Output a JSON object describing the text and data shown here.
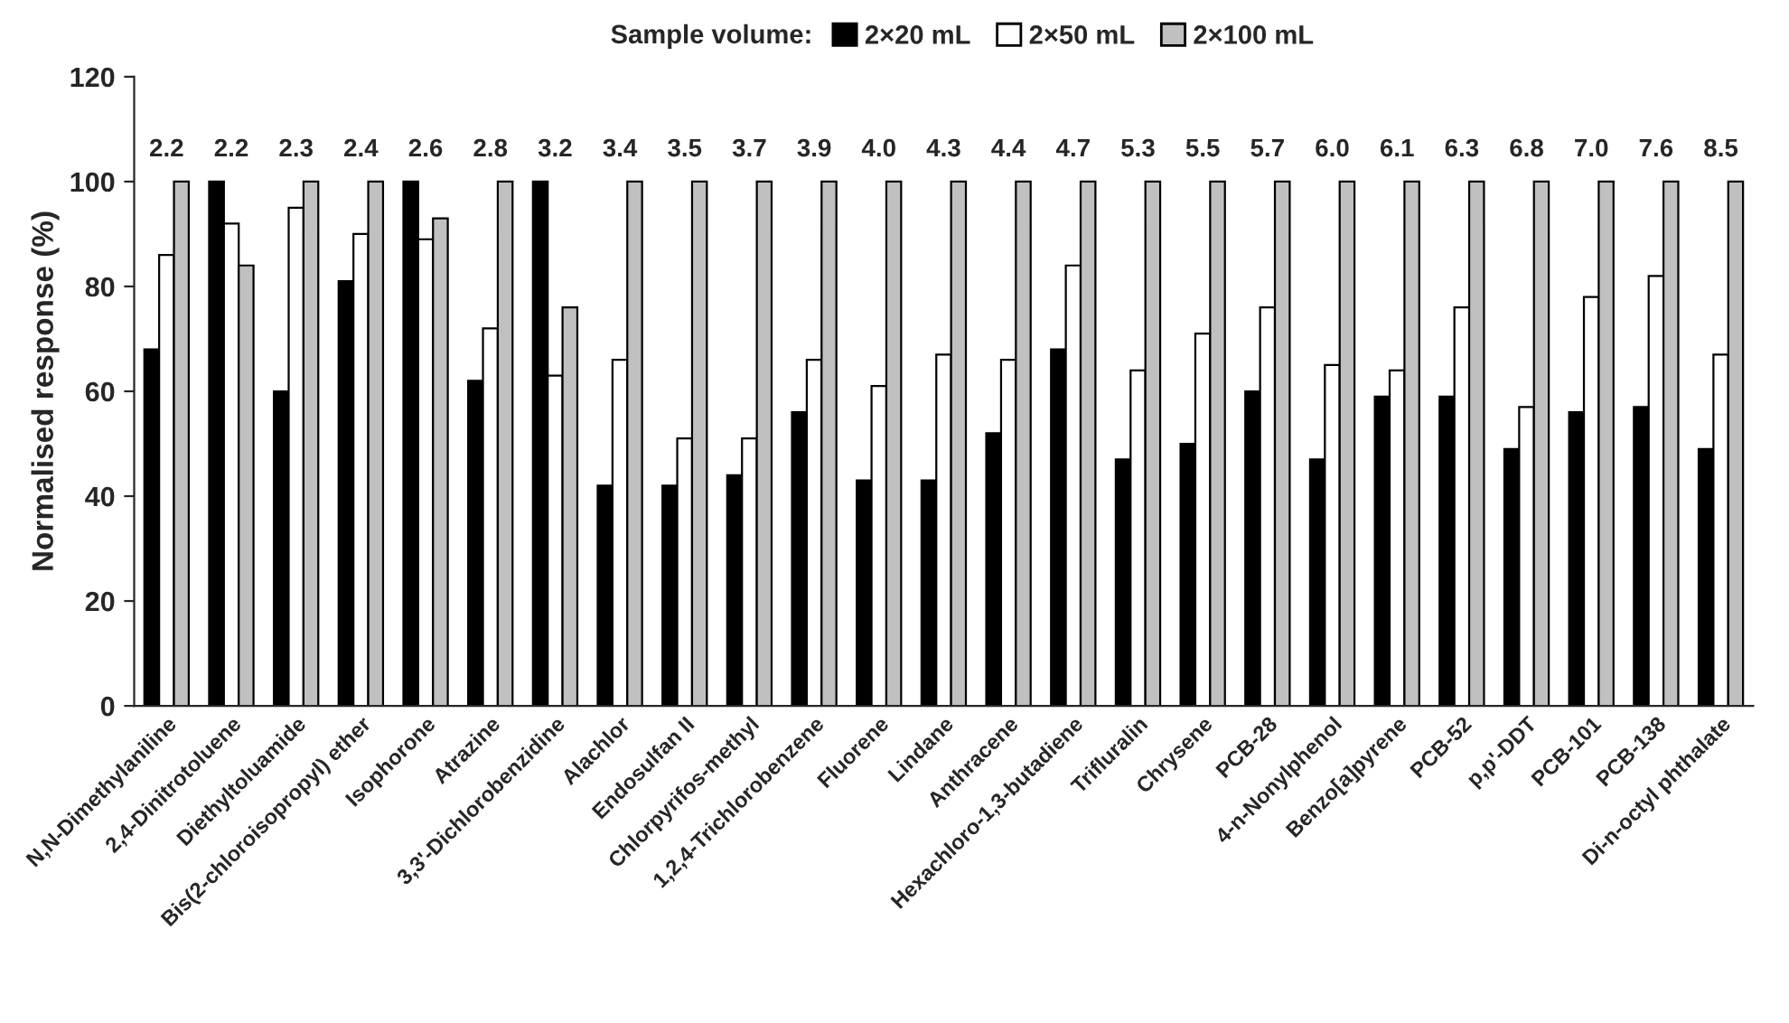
{
  "chart_data": {
    "type": "bar",
    "ylabel": "Normalised response (%)",
    "legend_title": "Sample volume:",
    "legend": "top",
    "categories": [
      "N,N-Dimethylaniline",
      "2,4-Dinitrotoluene",
      "Diethyltoluamide",
      "Bis(2-chloroisopropyl) ether",
      "Isophorone",
      "Atrazine",
      "3,3'-Dichlorobenzidine",
      "Alachlor",
      "Endosulfan II",
      "Chlorpyrifos-methyl",
      "1,2,4-Trichlorobenzene",
      "Fluorene",
      "Lindane",
      "Anthracene",
      "Hexachloro-1,3-butadiene",
      "Trifluralin",
      "Chrysene",
      "PCB-28",
      "4-n-Nonylphenol",
      "Benzo[a]pyrene",
      "PCB-52",
      "p,p'-DDT",
      "PCB-101",
      "PCB-138",
      "Di-n-octyl phthalate"
    ],
    "series": [
      {
        "name": "2×20 mL",
        "color": "#000000",
        "values": [
          68,
          100,
          60,
          81,
          100,
          62,
          100,
          42,
          42,
          44,
          56,
          43,
          43,
          52,
          68,
          47,
          50,
          60,
          47,
          59,
          59,
          49,
          56,
          57,
          49
        ]
      },
      {
        "name": "2×50 mL",
        "color": "#ffffff",
        "values": [
          86,
          92,
          95,
          90,
          89,
          72,
          63,
          66,
          51,
          51,
          66,
          61,
          67,
          66,
          84,
          64,
          71,
          76,
          65,
          64,
          76,
          57,
          78,
          82,
          67
        ]
      },
      {
        "name": "2×100 mL",
        "color": "#c0c0c0",
        "values": [
          100,
          84,
          100,
          100,
          93,
          100,
          76,
          100,
          100,
          100,
          100,
          100,
          100,
          100,
          100,
          100,
          100,
          100,
          100,
          100,
          100,
          100,
          100,
          100,
          100
        ]
      }
    ],
    "annotations": [
      "2.2",
      "2.2",
      "2.3",
      "2.4",
      "2.6",
      "2.8",
      "3.2",
      "3.4",
      "3.5",
      "3.7",
      "3.9",
      "4.0",
      "4.3",
      "4.4",
      "4.7",
      "5.3",
      "5.5",
      "5.7",
      "6.0",
      "6.1",
      "6.3",
      "6.8",
      "7.0",
      "7.6",
      "8.5"
    ],
    "ylim": [
      0,
      120
    ],
    "yticks": [
      0,
      20,
      40,
      60,
      80,
      100,
      120
    ],
    "grid": false
  }
}
